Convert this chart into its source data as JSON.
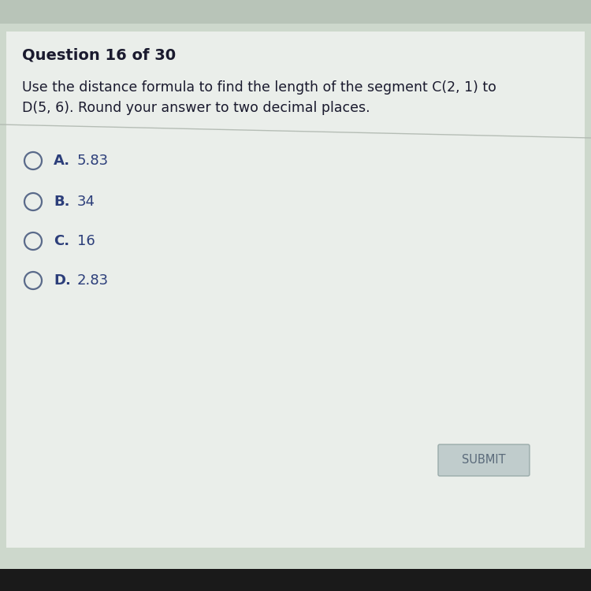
{
  "question_header": "Question 16 of 30",
  "question_line1": "Use the distance formula to find the length of the segment C(2, 1) to",
  "question_line2": "D(5, 6). Round your answer to two decimal places.",
  "options": [
    {
      "label": "A.",
      "value": "5.83"
    },
    {
      "label": "B.",
      "value": "34"
    },
    {
      "label": "C.",
      "value": "16"
    },
    {
      "label": "D.",
      "value": "2.83"
    }
  ],
  "submit_text": "SUBMIT",
  "bg_color": "#cdd8cc",
  "content_color": "#eaeeea",
  "top_bar_color": "#b8c4b8",
  "text_color": "#1a1a2e",
  "header_color": "#1a1a2e",
  "option_text_color": "#2c3e7a",
  "submit_bg": "#c0cccc",
  "submit_text_color": "#5a6a7a",
  "divider_color": "#b0b8b0",
  "circle_color": "#5a6a8a",
  "bottom_bar_color": "#1a1a1a"
}
